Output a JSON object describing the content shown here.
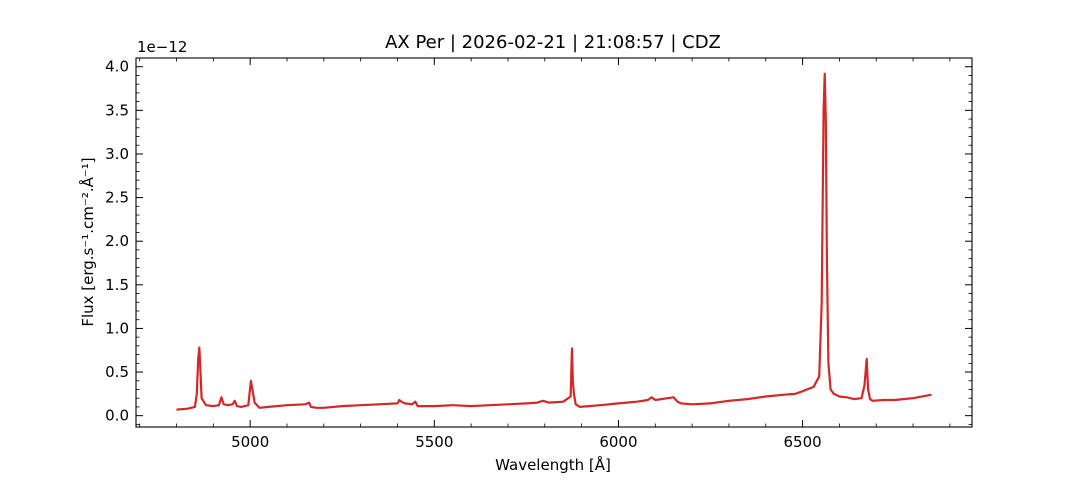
{
  "chart_data": {
    "type": "line",
    "title": "AX Per | 2026-02-21 | 21:08:57 | CDZ",
    "xlabel": "Wavelength [Å]",
    "ylabel": "Flux [erg.s⁻¹.cm⁻².Å⁻¹]",
    "y_offset_text": "1e−12",
    "xlim": [
      4690,
      6960
    ],
    "ylim": [
      -0.13,
      4.1
    ],
    "x_ticks": [
      5000,
      5500,
      6000,
      6500
    ],
    "x_tick_labels": [
      "5000",
      "5500",
      "6000",
      "6500"
    ],
    "y_ticks": [
      0.0,
      0.5,
      1.0,
      1.5,
      2.0,
      2.5,
      3.0,
      3.5,
      4.0
    ],
    "y_tick_labels": [
      "0.0",
      "0.5",
      "1.0",
      "1.5",
      "2.0",
      "2.5",
      "3.0",
      "3.5",
      "4.0"
    ],
    "grid": false,
    "series": [
      {
        "color": "#d62728",
        "x": [
          4800,
          4830,
          4850,
          4855,
          4859,
          4862,
          4864,
          4868,
          4880,
          4900,
          4915,
          4922,
          4928,
          4940,
          4952,
          4958,
          4964,
          4975,
          4995,
          5002,
          5007,
          5012,
          5025,
          5050,
          5100,
          5150,
          5160,
          5165,
          5180,
          5200,
          5250,
          5300,
          5350,
          5400,
          5405,
          5411,
          5420,
          5440,
          5448,
          5455,
          5500,
          5550,
          5600,
          5650,
          5700,
          5750,
          5780,
          5795,
          5810,
          5850,
          5870,
          5874,
          5876,
          5879,
          5884,
          5895,
          5920,
          5950,
          6000,
          6050,
          6080,
          6090,
          6100,
          6150,
          6160,
          6170,
          6200,
          6250,
          6300,
          6350,
          6400,
          6450,
          6480,
          6500,
          6530,
          6545,
          6552,
          6557,
          6560,
          6563,
          6566,
          6570,
          6576,
          6585,
          6600,
          6620,
          6640,
          6660,
          6668,
          6674,
          6678,
          6683,
          6690,
          6720,
          6750,
          6800,
          6850
        ],
        "y": [
          0.07,
          0.08,
          0.1,
          0.25,
          0.65,
          0.78,
          0.6,
          0.2,
          0.12,
          0.11,
          0.12,
          0.21,
          0.13,
          0.12,
          0.13,
          0.17,
          0.11,
          0.1,
          0.12,
          0.4,
          0.28,
          0.15,
          0.09,
          0.1,
          0.12,
          0.13,
          0.15,
          0.1,
          0.09,
          0.09,
          0.11,
          0.12,
          0.13,
          0.14,
          0.18,
          0.16,
          0.14,
          0.13,
          0.16,
          0.11,
          0.11,
          0.12,
          0.11,
          0.12,
          0.13,
          0.14,
          0.15,
          0.17,
          0.15,
          0.16,
          0.22,
          0.77,
          0.4,
          0.25,
          0.13,
          0.1,
          0.11,
          0.12,
          0.14,
          0.16,
          0.18,
          0.21,
          0.18,
          0.21,
          0.16,
          0.14,
          0.13,
          0.14,
          0.17,
          0.19,
          0.22,
          0.24,
          0.25,
          0.28,
          0.33,
          0.45,
          1.3,
          3.5,
          3.92,
          3.4,
          1.8,
          0.6,
          0.3,
          0.25,
          0.22,
          0.21,
          0.19,
          0.2,
          0.35,
          0.65,
          0.3,
          0.19,
          0.17,
          0.18,
          0.18,
          0.2,
          0.24
        ]
      }
    ]
  }
}
